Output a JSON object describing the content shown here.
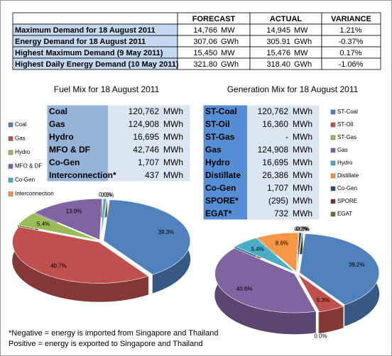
{
  "summary_table": {
    "headers": [
      "FORECAST",
      "ACTUAL",
      "VARIANCE"
    ],
    "rows": [
      {
        "label": "Maximum Demand for 18 August 2011",
        "forecast": "14,766",
        "forecast_unit": "MW",
        "actual": "14,945",
        "actual_unit": "MW",
        "variance": "1.21%"
      },
      {
        "label": "Energy Demand for 18 August 2011",
        "forecast": "307.06",
        "forecast_unit": "GWh",
        "actual": "305.91",
        "actual_unit": "GWh",
        "variance": "-0.37%"
      },
      {
        "label": "Highest Maximum Demand (9 May 2011)",
        "forecast": "15,450",
        "forecast_unit": "MW",
        "actual": "15,476",
        "actual_unit": "MW",
        "variance": "0.17%"
      },
      {
        "label": "Highest Daily Energy Demand (10 May 2011)",
        "forecast": "321.80",
        "forecast_unit": "GWh",
        "actual": "318.40",
        "actual_unit": "GWh",
        "variance": "-1.06%"
      }
    ]
  },
  "chart_data": [
    {
      "type": "pie",
      "title": "Fuel Mix for 18 August 2011",
      "categories": [
        "Coal",
        "Gas",
        "Hydro",
        "MFO & DF",
        "Co-Gen",
        "Interconnection"
      ],
      "values": [
        39.3,
        40.7,
        5.4,
        13.9,
        0.6,
        0.1
      ],
      "value_labels": [
        "39.3%",
        "40.7%",
        "5.4%",
        "13.9%",
        "0.6%",
        "0.1%"
      ],
      "colors": [
        "#4f81bd",
        "#c0504d",
        "#9bbb59",
        "#8064a2",
        "#4bacc6",
        "#f79646"
      ],
      "table": {
        "rows": [
          {
            "label": "Coal",
            "value": "120,762",
            "unit": "MWh"
          },
          {
            "label": "Gas",
            "value": "124,908",
            "unit": "MWh"
          },
          {
            "label": "Hydro",
            "value": "16,695",
            "unit": "MWh"
          },
          {
            "label": "MFO & DF",
            "value": "42,746",
            "unit": "MWh"
          },
          {
            "label": "Co-Gen",
            "value": "1,707",
            "unit": "MWh"
          },
          {
            "label": "Interconnection*",
            "value": "437",
            "unit": "MWh"
          }
        ]
      }
    },
    {
      "type": "pie",
      "title": "Generation Mix for 18 August 2011",
      "categories": [
        "ST-Coal",
        "ST-Oil",
        "ST-Gas",
        "Gas",
        "Hydro",
        "Distillate",
        "Co-Gen",
        "SPORE",
        "EGAT"
      ],
      "values": [
        39.2,
        5.3,
        0.0,
        40.6,
        5.4,
        8.6,
        0.6,
        -0.1,
        0.2
      ],
      "value_labels": [
        "39.2%",
        "5.3%",
        "0.0%",
        "40.6%",
        "5.4%",
        "8.6%",
        "0.6%",
        "-0.1%",
        "0.2%"
      ],
      "colors": [
        "#4f81bd",
        "#c0504d",
        "#9bbb59",
        "#8064a2",
        "#4bacc6",
        "#f79646",
        "#2c4d75",
        "#772c2a",
        "#5f7530"
      ],
      "table": {
        "rows": [
          {
            "label": "ST-Coal",
            "value": "120,762",
            "unit": "MWh"
          },
          {
            "label": "ST-Oil",
            "value": "16,360",
            "unit": "MWh"
          },
          {
            "label": "ST-Gas",
            "value": "-",
            "unit": "MWh"
          },
          {
            "label": "Gas",
            "value": "124,908",
            "unit": "MWh"
          },
          {
            "label": "Hydro",
            "value": "16,695",
            "unit": "MWh"
          },
          {
            "label": "Distillate",
            "value": "26,386",
            "unit": "MWh"
          },
          {
            "label": "Co-Gen",
            "value": "1,707",
            "unit": "MWh"
          },
          {
            "label": "SPORE*",
            "value": "(295)",
            "unit": "MWh"
          },
          {
            "label": "EGAT*",
            "value": "732",
            "unit": "MWh"
          }
        ]
      }
    }
  ],
  "footnote": [
    "*Negative = energy is imported from Singapore and Thailand",
    "Positive = energy is exported to Singapore and Thailand"
  ]
}
